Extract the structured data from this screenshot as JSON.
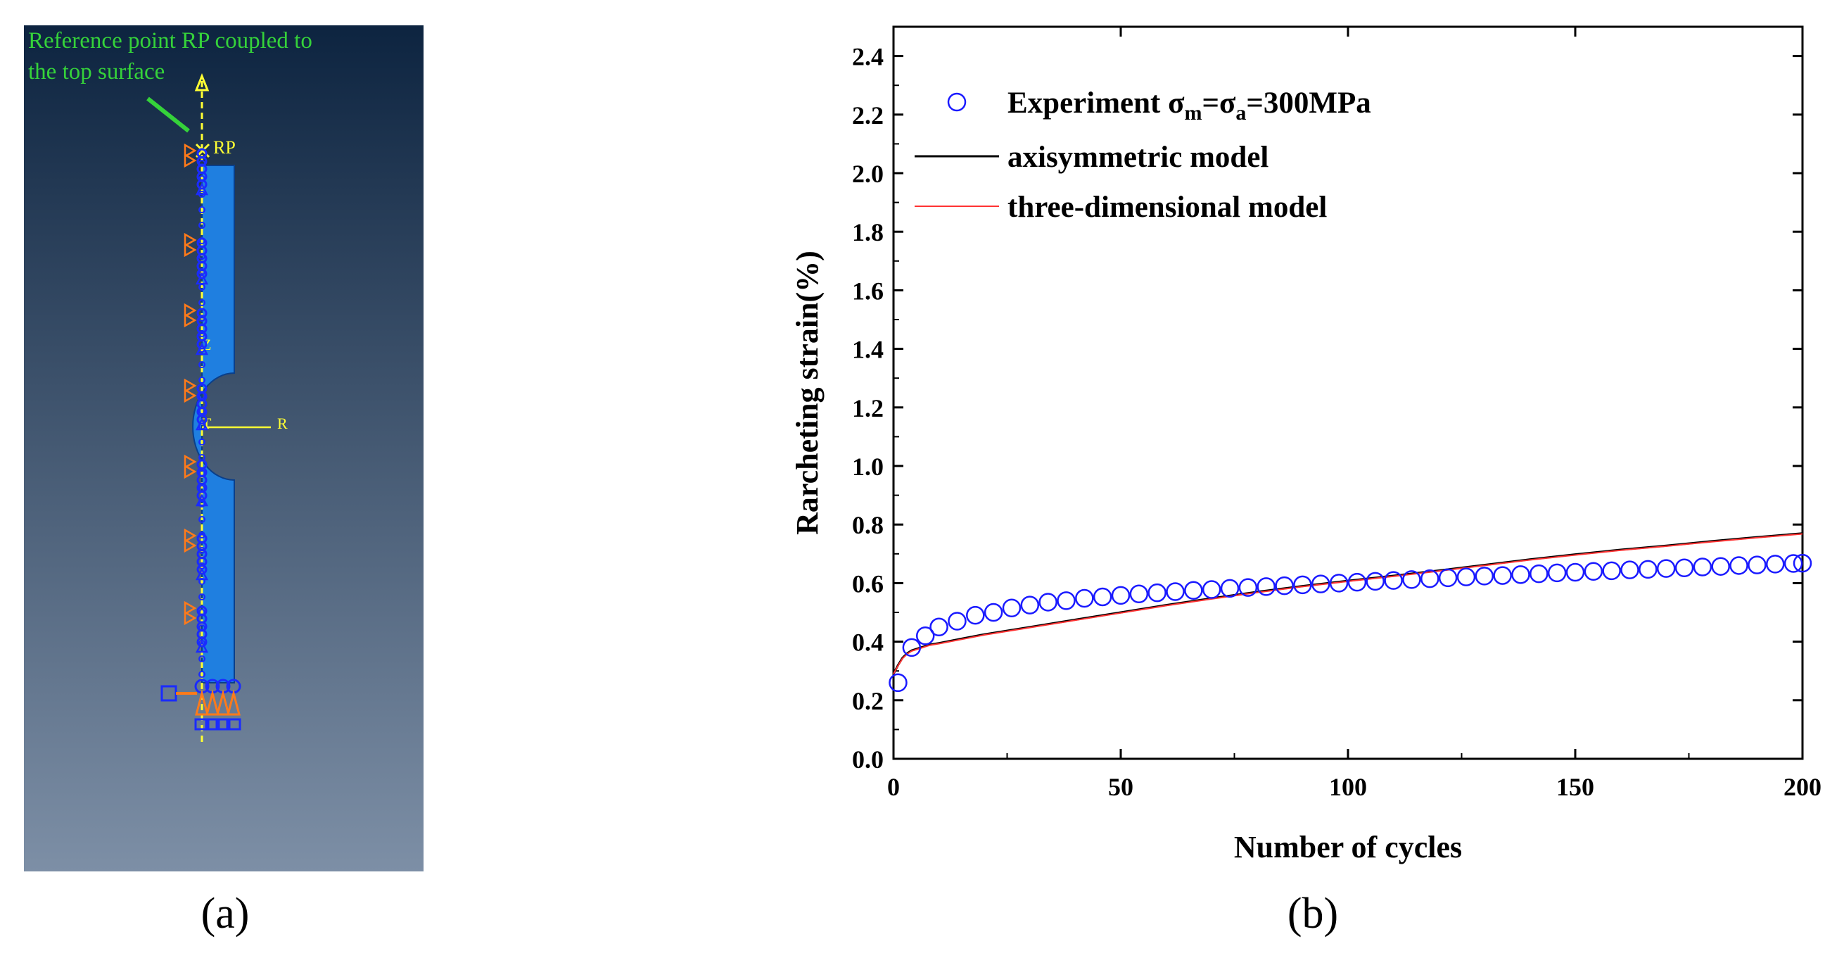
{
  "panels": {
    "a": {
      "label": "(a)",
      "annotation_line1": "Reference point RP coupled to",
      "annotation_line2": "the top surface",
      "rp_label": "RP",
      "axis_z_label": "Z",
      "axis_t_label": "T",
      "axis_r_label": "R",
      "colors": {
        "bg_top": "#0d2440",
        "bg_bottom": "#7d8fa6",
        "specimen": "#1f7fe0",
        "annotation": "#35d23a",
        "symmetry_axis": "#ffff33",
        "constraint_orange": "#ff7a1a",
        "constraint_blue": "#1a2bff"
      }
    },
    "b": {
      "label": "(b)"
    }
  },
  "chart_data": {
    "type": "line",
    "title": "",
    "xlabel": "Number of cycles",
    "ylabel": "Rarcheting strain(%)",
    "xlim": [
      0,
      200
    ],
    "ylim": [
      0.0,
      2.5
    ],
    "x_ticks": [
      "0",
      "50",
      "100",
      "150",
      "200"
    ],
    "y_ticks": [
      "0.0",
      "0.2",
      "0.4",
      "0.6",
      "0.8",
      "1.0",
      "1.2",
      "1.4",
      "1.6",
      "1.8",
      "2.0",
      "2.2",
      "2.4"
    ],
    "legend": {
      "placement": "top-left",
      "experiment_prefix": "Experiment  σ",
      "experiment_sub1": "m",
      "experiment_mid": "=σ",
      "experiment_sub2": "a",
      "experiment_suffix": "=300MPa",
      "axisymmetric": "axisymmetric model",
      "three_d": "three-dimensional model"
    },
    "series": [
      {
        "name": "Experiment σm=σa=300MPa",
        "style": "open-circle",
        "color": "#1a1aff",
        "x": [
          1,
          4,
          7,
          10,
          14,
          18,
          22,
          26,
          30,
          34,
          38,
          42,
          46,
          50,
          54,
          58,
          62,
          66,
          70,
          74,
          78,
          82,
          86,
          90,
          94,
          98,
          102,
          106,
          110,
          114,
          118,
          122,
          126,
          130,
          134,
          138,
          142,
          146,
          150,
          154,
          158,
          162,
          166,
          170,
          174,
          178,
          182,
          186,
          190,
          194,
          198,
          200
        ],
        "y": [
          0.26,
          0.38,
          0.42,
          0.45,
          0.47,
          0.49,
          0.5,
          0.515,
          0.525,
          0.535,
          0.54,
          0.548,
          0.553,
          0.558,
          0.563,
          0.567,
          0.571,
          0.575,
          0.578,
          0.582,
          0.585,
          0.588,
          0.591,
          0.594,
          0.597,
          0.6,
          0.603,
          0.606,
          0.609,
          0.612,
          0.615,
          0.618,
          0.621,
          0.624,
          0.626,
          0.629,
          0.632,
          0.635,
          0.637,
          0.64,
          0.642,
          0.645,
          0.647,
          0.65,
          0.652,
          0.655,
          0.657,
          0.66,
          0.662,
          0.665,
          0.667,
          0.668
        ]
      },
      {
        "name": "axisymmetric model",
        "style": "line",
        "color": "#000000",
        "x": [
          0,
          1,
          2,
          3,
          4,
          6,
          8,
          10,
          15,
          20,
          30,
          40,
          50,
          60,
          70,
          80,
          90,
          100,
          110,
          120,
          130,
          140,
          150,
          160,
          170,
          180,
          190,
          200
        ],
        "y": [
          0.29,
          0.32,
          0.345,
          0.36,
          0.37,
          0.38,
          0.39,
          0.395,
          0.41,
          0.425,
          0.45,
          0.475,
          0.5,
          0.525,
          0.548,
          0.57,
          0.59,
          0.608,
          0.625,
          0.643,
          0.662,
          0.681,
          0.698,
          0.714,
          0.728,
          0.743,
          0.757,
          0.77
        ]
      },
      {
        "name": "three-dimensional model",
        "style": "line",
        "color": "#ff3333",
        "x": [
          0,
          1,
          2,
          3,
          4,
          6,
          8,
          10,
          15,
          20,
          30,
          40,
          50,
          60,
          70,
          80,
          90,
          100,
          110,
          120,
          130,
          140,
          150,
          160,
          170,
          180,
          190,
          200
        ],
        "y": [
          0.29,
          0.318,
          0.343,
          0.358,
          0.368,
          0.378,
          0.388,
          0.393,
          0.408,
          0.423,
          0.448,
          0.473,
          0.498,
          0.523,
          0.546,
          0.568,
          0.588,
          0.606,
          0.623,
          0.641,
          0.66,
          0.679,
          0.696,
          0.712,
          0.726,
          0.741,
          0.755,
          0.768
        ]
      }
    ]
  }
}
